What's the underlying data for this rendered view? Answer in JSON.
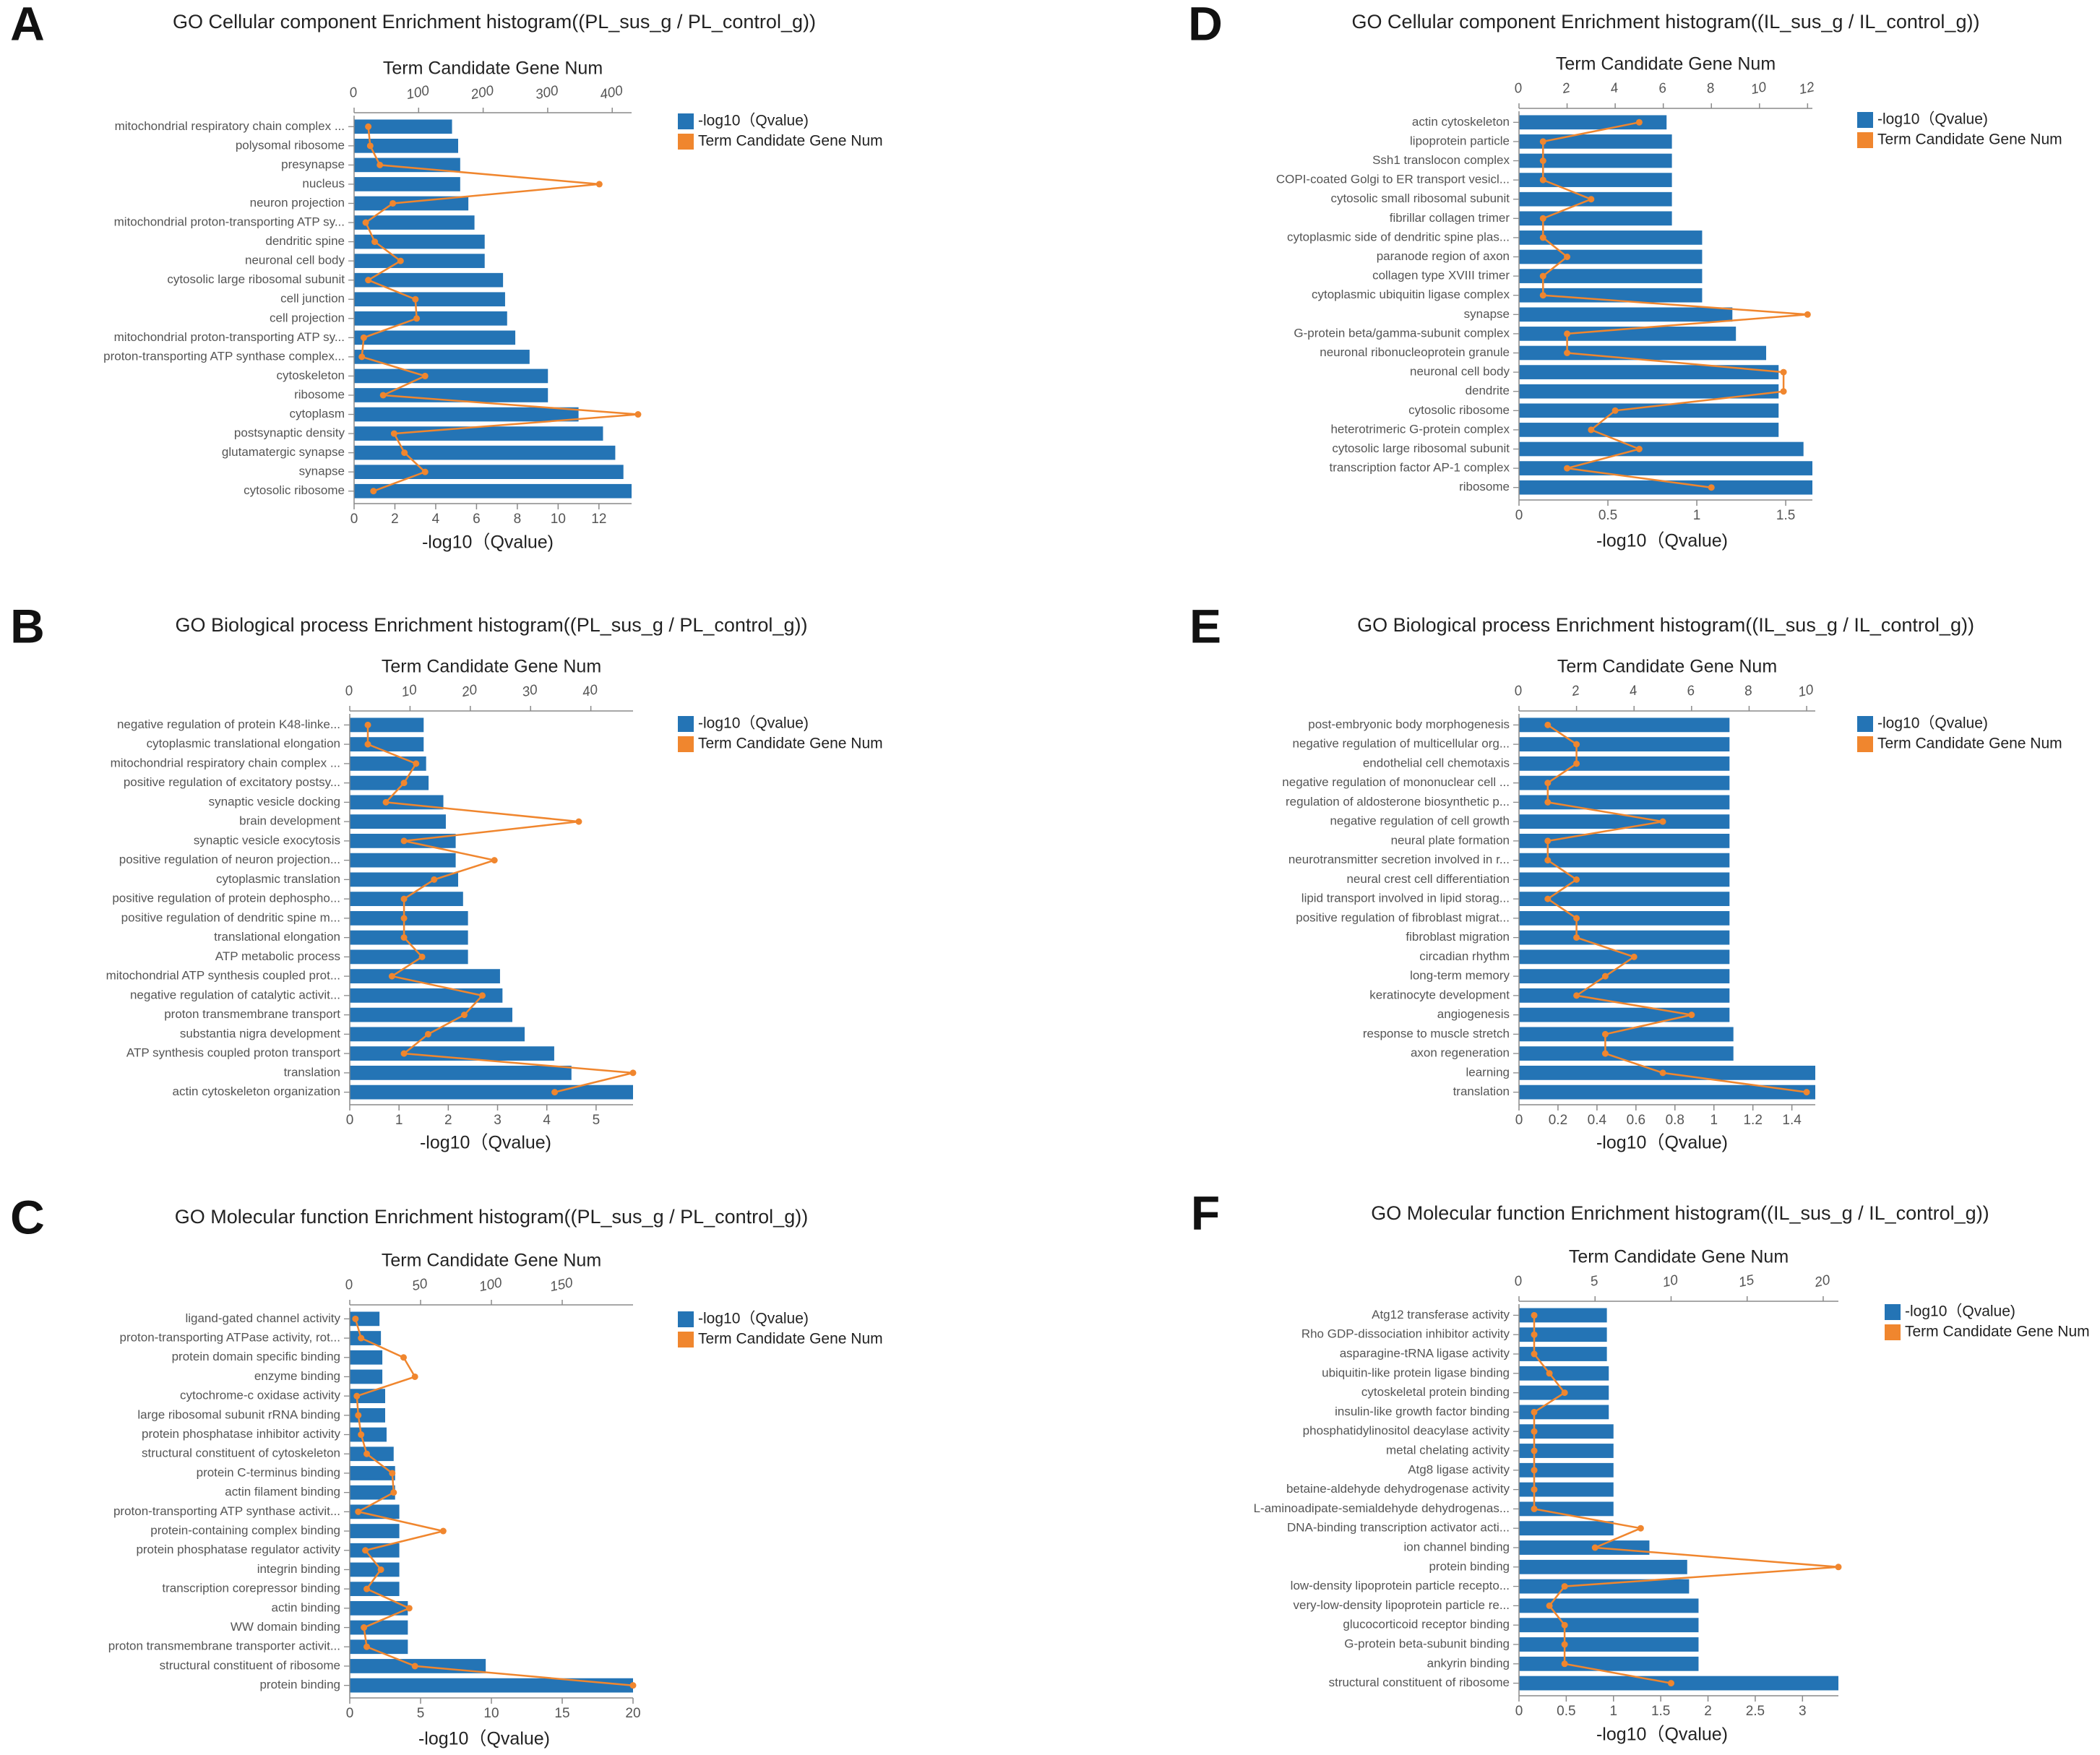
{
  "chart_data": [
    {
      "panel_label": "A",
      "type": "bar+line",
      "title": "GO Cellular component Enrichment histogram((PL_sus_g / PL_control_g))",
      "xlabel": "-log10（Qvalue)",
      "top_axis_label": "Term Candidate Gene Num",
      "bottom_ticks": [
        "0",
        "2",
        "4",
        "6",
        "8",
        "10",
        "12"
      ],
      "top_ticks": [
        "100",
        "200",
        "300",
        "400"
      ],
      "xlim": [
        0,
        13.6
      ],
      "top_lim": [
        0,
        430
      ],
      "legend": [
        "-log10（Qvalue)",
        "Term Candidate Gene Num"
      ],
      "categories": [
        "mitochondrial respiratory chain complex ...",
        "polysomal ribosome",
        "presynapse",
        "nucleus",
        "neuron projection",
        "mitochondrial proton-transporting ATP sy...",
        "dendritic spine",
        "neuronal cell body",
        "cytosolic large ribosomal subunit",
        "cell junction",
        "cell projection",
        "mitochondrial proton-transporting ATP sy...",
        "proton-transporting ATP synthase complex...",
        "cytoskeleton",
        "ribosome",
        "cytoplasm",
        "postsynaptic density",
        "glutamatergic synapse",
        "synapse",
        "cytosolic ribosome"
      ],
      "values": [
        4.8,
        5.1,
        5.2,
        5.2,
        5.6,
        5.9,
        6.4,
        6.4,
        7.3,
        7.4,
        7.5,
        7.9,
        8.6,
        9.5,
        9.5,
        11.0,
        12.2,
        12.8,
        13.2,
        13.6
      ],
      "gene_num": [
        22,
        25,
        40,
        380,
        60,
        18,
        32,
        72,
        22,
        95,
        97,
        15,
        12,
        110,
        45,
        440,
        62,
        78,
        110,
        30
      ]
    },
    {
      "panel_label": "B",
      "type": "bar+line",
      "title": "GO Biological process Enrichment histogram((PL_sus_g / PL_control_g))",
      "xlabel": "-log10（Qvalue)",
      "top_axis_label": "Term Candidate Gene Num",
      "bottom_ticks": [
        "0",
        "1",
        "2",
        "3",
        "4",
        "5"
      ],
      "top_ticks": [
        "10",
        "20",
        "30",
        "40"
      ],
      "xlim": [
        0,
        5.75
      ],
      "top_lim": [
        0,
        47
      ],
      "legend": [
        "-log10（Qvalue)",
        "Term Candidate Gene Num"
      ],
      "categories": [
        "negative regulation of protein K48-linke...",
        "cytoplasmic translational elongation",
        "mitochondrial respiratory chain complex ...",
        "positive regulation of excitatory postsy...",
        "synaptic vesicle docking",
        "brain development",
        "synaptic vesicle exocytosis",
        "positive regulation of neuron projection...",
        "cytoplasmic translation",
        "positive regulation of protein dephospho...",
        "positive regulation of dendritic spine m...",
        "translational elongation",
        "ATP metabolic process",
        "mitochondrial ATP synthesis coupled prot...",
        "negative regulation of catalytic activit...",
        "proton transmembrane transport",
        "substantia nigra development",
        "ATP synthesis coupled proton transport",
        "translation",
        "actin cytoskeleton organization"
      ],
      "values": [
        1.5,
        1.5,
        1.55,
        1.6,
        1.9,
        1.95,
        2.15,
        2.15,
        2.2,
        2.3,
        2.4,
        2.4,
        2.4,
        3.05,
        3.1,
        3.3,
        3.55,
        4.15,
        4.5,
        5.75
      ],
      "gene_num": [
        3,
        3,
        11,
        9,
        6,
        38,
        9,
        24,
        14,
        9,
        9,
        9,
        12,
        7,
        22,
        19,
        13,
        9,
        47,
        34
      ]
    },
    {
      "panel_label": "C",
      "type": "bar+line",
      "title": "GO Molecular function Enrichment histogram((PL_sus_g / PL_control_g))",
      "xlabel": "-log10（Qvalue)",
      "top_axis_label": "Term Candidate Gene Num",
      "bottom_ticks": [
        "0",
        "5",
        "10",
        "15",
        "20"
      ],
      "top_ticks": [
        "50",
        "100",
        "150"
      ],
      "xlim": [
        0,
        20
      ],
      "top_lim": [
        0,
        200
      ],
      "legend": [
        "-log10（Qvalue)",
        "Term Candidate Gene Num"
      ],
      "categories": [
        "ligand-gated channel activity",
        "proton-transporting ATPase activity, rot...",
        "protein domain specific binding",
        "enzyme binding",
        "cytochrome-c oxidase activity",
        "large ribosomal subunit rRNA binding",
        "protein phosphatase inhibitor activity",
        "structural constituent of cytoskeleton",
        "protein C-terminus binding",
        "actin filament binding",
        "proton-transporting ATP synthase activit...",
        "protein-containing complex binding",
        "protein phosphatase regulator activity",
        "integrin binding",
        "transcription corepressor binding",
        "actin binding",
        "WW domain binding",
        "proton transmembrane transporter activit...",
        "structural constituent of ribosome",
        "protein binding"
      ],
      "values": [
        2.1,
        2.2,
        2.3,
        2.3,
        2.5,
        2.5,
        2.6,
        3.1,
        3.2,
        3.2,
        3.5,
        3.5,
        3.5,
        3.5,
        3.5,
        4.1,
        4.1,
        4.1,
        9.6,
        20.0
      ],
      "gene_num": [
        4,
        8,
        38,
        46,
        5,
        6,
        8,
        12,
        30,
        31,
        6,
        66,
        11,
        22,
        12,
        42,
        10,
        12,
        46,
        200
      ]
    },
    {
      "panel_label": "D",
      "type": "bar+line",
      "title": "GO Cellular component Enrichment histogram((IL_sus_g / IL_control_g))",
      "xlabel": "-log10（Qvalue)",
      "top_axis_label": "Term Candidate Gene Num",
      "bottom_ticks": [
        "0",
        "0.5",
        "1",
        "1.5"
      ],
      "top_ticks": [
        "2",
        "4",
        "6",
        "8",
        "10",
        "12"
      ],
      "xlim": [
        0,
        1.65
      ],
      "top_lim": [
        0,
        12.2
      ],
      "legend": [
        "-log10（Qvalue)",
        "Term Candidate Gene Num"
      ],
      "categories": [
        "actin cytoskeleton",
        "lipoprotein particle",
        "Ssh1 translocon complex",
        "COPI-coated Golgi to ER transport vesicl...",
        "cytosolic small ribosomal subunit",
        "fibrillar collagen trimer",
        "cytoplasmic side of dendritic spine plas...",
        "paranode region of axon",
        "collagen type XVIII trimer",
        "cytoplasmic ubiquitin ligase complex",
        "synapse",
        "G-protein beta/gamma-subunit complex",
        "neuronal ribonucleoprotein granule",
        "neuronal cell body",
        "dendrite",
        "cytosolic ribosome",
        "heterotrimeric G-protein complex",
        "cytosolic large ribosomal subunit",
        "transcription factor AP-1 complex",
        "ribosome"
      ],
      "values": [
        0.83,
        0.86,
        0.86,
        0.86,
        0.86,
        0.86,
        1.03,
        1.03,
        1.03,
        1.03,
        1.2,
        1.22,
        1.39,
        1.46,
        1.46,
        1.46,
        1.46,
        1.6,
        1.65,
        1.65
      ],
      "gene_num": [
        5,
        1,
        1,
        1,
        3,
        1,
        1,
        2,
        1,
        1,
        12,
        2,
        2,
        11,
        11,
        4,
        3,
        5,
        2,
        8
      ]
    },
    {
      "panel_label": "E",
      "type": "bar+line",
      "title": "GO Biological process Enrichment histogram((IL_sus_g / IL_control_g))",
      "xlabel": "-log10（Qvalue)",
      "top_axis_label": "Term Candidate Gene Num",
      "bottom_ticks": [
        "0",
        "0.2",
        "0.4",
        "0.6",
        "0.8",
        "1",
        "1.2",
        "1.4"
      ],
      "top_ticks": [
        "2",
        "4",
        "6",
        "8",
        "10"
      ],
      "xlim": [
        0,
        1.52
      ],
      "top_lim": [
        0,
        10.3
      ],
      "legend": [
        "-log10（Qvalue)",
        "Term Candidate Gene Num"
      ],
      "categories": [
        "post-embryonic body morphogenesis",
        "negative regulation of multicellular org...",
        "endothelial cell chemotaxis",
        "negative regulation of mononuclear cell ...",
        "regulation of aldosterone biosynthetic p...",
        "negative regulation of cell growth",
        "neural plate formation",
        "neurotransmitter secretion involved in r...",
        "neural crest cell differentiation",
        "lipid transport involved in lipid storag...",
        "positive regulation of fibroblast migrat...",
        "fibroblast migration",
        "circadian rhythm",
        "long-term memory",
        "keratinocyte development",
        "angiogenesis",
        "response to muscle stretch",
        "axon regeneration",
        "learning",
        "translation"
      ],
      "values": [
        1.08,
        1.08,
        1.08,
        1.08,
        1.08,
        1.08,
        1.08,
        1.08,
        1.08,
        1.08,
        1.08,
        1.08,
        1.08,
        1.08,
        1.08,
        1.08,
        1.1,
        1.1,
        1.52,
        1.52
      ],
      "gene_num": [
        1,
        2,
        2,
        1,
        1,
        5,
        1,
        1,
        2,
        1,
        2,
        2,
        4,
        3,
        2,
        6,
        3,
        3,
        5,
        10
      ]
    },
    {
      "panel_label": "F",
      "type": "bar+line",
      "title": "GO Molecular function Enrichment histogram((IL_sus_g / IL_control_g))",
      "xlabel": "-log10（Qvalue)",
      "top_axis_label": "Term Candidate Gene Num",
      "bottom_ticks": [
        "0",
        "0.5",
        "1",
        "1.5",
        "2",
        "2.5",
        "3"
      ],
      "top_ticks": [
        "5",
        "10",
        "15",
        "20"
      ],
      "xlim": [
        0,
        3.38
      ],
      "top_lim": [
        0,
        21
      ],
      "legend": [
        "-log10（Qvalue)",
        "Term Candidate Gene Num"
      ],
      "categories": [
        "Atg12 transferase activity",
        "Rho GDP-dissociation inhibitor activity",
        "asparagine-tRNA ligase activity",
        "ubiquitin-like protein ligase binding",
        "cytoskeletal protein binding",
        "insulin-like growth factor binding",
        "phosphatidylinositol deacylase activity",
        "metal chelating activity",
        "Atg8 ligase activity",
        "betaine-aldehyde dehydrogenase activity",
        "L-aminoadipate-semialdehyde dehydrogenas...",
        "DNA-binding transcription activator acti...",
        "ion channel binding",
        "protein binding",
        "low-density lipoprotein particle recepto...",
        "very-low-density lipoprotein particle re...",
        "glucocorticoid receptor binding",
        "G-protein beta-subunit binding",
        "ankyrin binding",
        "structural constituent of ribosome"
      ],
      "values": [
        0.93,
        0.93,
        0.93,
        0.95,
        0.95,
        0.95,
        1.0,
        1.0,
        1.0,
        1.0,
        1.0,
        1.0,
        1.38,
        1.78,
        1.8,
        1.9,
        1.9,
        1.9,
        1.9,
        3.38
      ],
      "gene_num": [
        1,
        1,
        1,
        2,
        3,
        1,
        1,
        1,
        1,
        1,
        1,
        8,
        5,
        21,
        3,
        2,
        3,
        3,
        3,
        10
      ]
    }
  ]
}
